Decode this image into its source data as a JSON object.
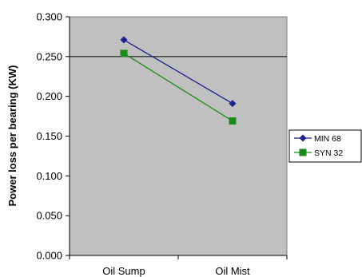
{
  "chart_data": {
    "type": "line",
    "categories": [
      "Oil Sump",
      "Oil Mist"
    ],
    "series": [
      {
        "name": "MIN 68",
        "values": [
          0.271,
          0.191
        ],
        "color": "#1F1F8F",
        "marker": "diamond"
      },
      {
        "name": "SYN 32",
        "values": [
          0.254,
          0.169
        ],
        "color": "#1A8A1A",
        "marker": "square"
      }
    ],
    "title": "",
    "xlabel": "",
    "ylabel": "Power loss per bearing (KW)",
    "ylim": [
      0,
      0.3
    ],
    "yticks": [
      "0.000",
      "0.050",
      "0.100",
      "0.150",
      "0.200",
      "0.250",
      "0.300"
    ],
    "gridlines": [
      0.25
    ],
    "plot_background": "#C0C0C0",
    "legend_position": "right"
  }
}
